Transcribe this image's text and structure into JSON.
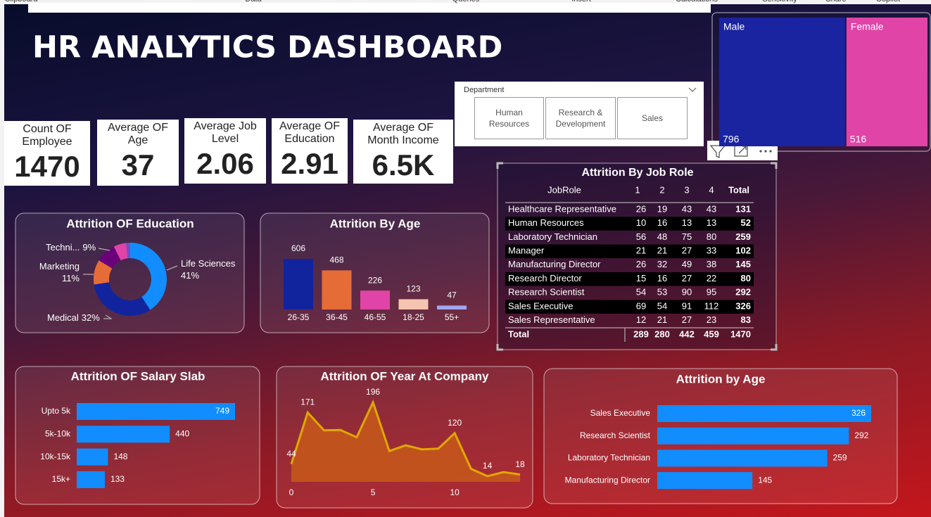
{
  "ribbon": [
    "Clipboard",
    "Data",
    "Queries",
    "Insert",
    "Calculations",
    "Sensitivity",
    "Share",
    "Copilot"
  ],
  "title": "HR ANALYTICS DASHBOARD",
  "kpis": [
    {
      "label": "Count OF Employee",
      "value": 1470
    },
    {
      "label": "Average OF Age",
      "value": 37
    },
    {
      "label": "Average Job Level",
      "value": 2.06
    },
    {
      "label": "Average OF Education",
      "value": 2.91
    },
    {
      "label": "Average OF Month Income",
      "value": "6.5K"
    }
  ],
  "slicer": {
    "title": "Department",
    "options": [
      "Human Resources",
      "Research & Development",
      "Sales"
    ]
  },
  "job_role_table": {
    "title": "Attrition By Job Role",
    "columns": [
      "JobRole",
      "1",
      "2",
      "3",
      "4",
      "Total"
    ],
    "rows": [
      [
        "Healthcare Representative",
        26,
        19,
        43,
        43,
        131
      ],
      [
        "Human Resources",
        10,
        16,
        13,
        13,
        52
      ],
      [
        "Laboratory Technician",
        56,
        48,
        75,
        80,
        259
      ],
      [
        "Manager",
        21,
        21,
        27,
        33,
        102
      ],
      [
        "Manufacturing Director",
        26,
        32,
        49,
        38,
        145
      ],
      [
        "Research Director",
        15,
        16,
        27,
        22,
        80
      ],
      [
        "Research Scientist",
        54,
        53,
        90,
        95,
        292
      ],
      [
        "Sales Executive",
        69,
        54,
        91,
        112,
        326
      ],
      [
        "Sales Representative",
        12,
        21,
        27,
        23,
        83
      ]
    ],
    "total": [
      "Total",
      289,
      280,
      442,
      459,
      1470
    ]
  },
  "chart_data": [
    {
      "type": "treemap",
      "categories": [
        "Male",
        "Female"
      ],
      "values": [
        796,
        516
      ],
      "colors": [
        "#1a24a0",
        "#e044a7"
      ]
    },
    {
      "type": "donut",
      "title": "Attrition OF Education",
      "categories": [
        "Life Sciences",
        "Medical",
        "Marketing",
        "Techni...",
        null,
        null
      ],
      "values": [
        41,
        32,
        11,
        9,
        5.6,
        1.8
      ],
      "value_labels": [
        "41%",
        "32%",
        "11%",
        "9%",
        null,
        null
      ],
      "colors": [
        "#118dff",
        "#12239e",
        "#e66c37",
        "#6b007b",
        "#e044a7",
        "#744ec2"
      ]
    },
    {
      "type": "bar",
      "title": "Attrition By Age",
      "categories": [
        "26-35",
        "36-45",
        "46-55",
        "18-25",
        "55+"
      ],
      "values": [
        606,
        468,
        226,
        123,
        47
      ],
      "colors": [
        "#12239e",
        "#e66c37",
        "#e044a7",
        "#f5c4af",
        "#a0a7f0"
      ]
    },
    {
      "type": "hbar",
      "title": "Attrition OF Salary Slab",
      "categories": [
        "Upto 5k",
        "5k-10k",
        "10k-15k",
        "15k+"
      ],
      "values": [
        749,
        440,
        148,
        133
      ],
      "color": "#118dff"
    },
    {
      "type": "area",
      "title": "Attrition OF Year At Company",
      "x": [
        0,
        1,
        2,
        3,
        4,
        5,
        6,
        7,
        8,
        9,
        10,
        11,
        12,
        13,
        14
      ],
      "values": [
        44,
        171,
        127,
        128,
        110,
        196,
        76,
        90,
        80,
        82,
        120,
        32,
        14,
        24,
        18
      ],
      "value_labels": [
        44,
        171,
        null,
        null,
        null,
        196,
        null,
        null,
        null,
        null,
        120,
        null,
        14,
        null,
        18
      ],
      "xlim": [
        0,
        14
      ],
      "xticks": [
        0,
        5,
        10
      ],
      "color": "#e0a800",
      "fill": "#c4561c"
    },
    {
      "type": "hbar",
      "title": "Attrition by Age",
      "categories": [
        "Sales Executive",
        "Research Scientist",
        "Laboratory Technician",
        "Manufacturing Director"
      ],
      "values": [
        326,
        292,
        259,
        145
      ],
      "color": "#118dff"
    }
  ]
}
